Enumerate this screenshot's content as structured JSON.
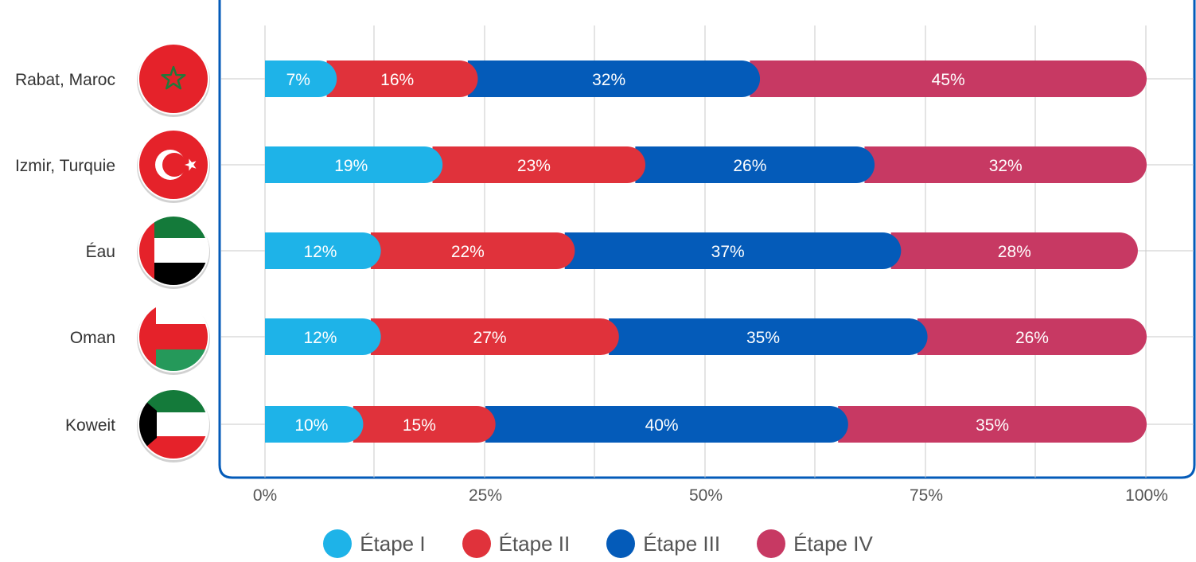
{
  "chart_data": {
    "type": "bar",
    "orientation": "horizontal",
    "stacked": true,
    "categories": [
      "Rabat, Maroc",
      "Izmir, Turquie",
      "Éau",
      "Oman",
      "Koweit"
    ],
    "category_flags": [
      "morocco-flag",
      "turkey-flag",
      "uae-flag",
      "oman-flag",
      "kuwait-flag"
    ],
    "series": [
      {
        "name": "Étape I",
        "color": "#1eb3e8",
        "values": [
          7,
          19,
          12,
          12,
          10
        ],
        "labels": [
          "7%",
          "19%",
          "12%",
          "12%",
          "10%"
        ]
      },
      {
        "name": "Étape II",
        "color": "#e0323b",
        "values": [
          16,
          23,
          22,
          27,
          15
        ],
        "labels": [
          "16%",
          "23%",
          "22%",
          "27%",
          "15%"
        ]
      },
      {
        "name": "Étape III",
        "color": "#045bb9",
        "values": [
          32,
          26,
          37,
          35,
          40
        ],
        "labels": [
          "32%",
          "26%",
          "37%",
          "35%",
          "40%"
        ]
      },
      {
        "name": "Étape IV",
        "color": "#c73963",
        "values": [
          45,
          32,
          28,
          26,
          35
        ],
        "labels": [
          "45%",
          "32%",
          "28%",
          "26%",
          "35%"
        ]
      }
    ],
    "x_ticks": [
      0,
      25,
      50,
      75,
      100
    ],
    "x_tick_labels": [
      "0%",
      "25%",
      "50%",
      "75%",
      "100%"
    ],
    "xlim": [
      0,
      100
    ],
    "grid": true,
    "legend_position": "bottom-center",
    "frame_color": "#045bb9"
  }
}
